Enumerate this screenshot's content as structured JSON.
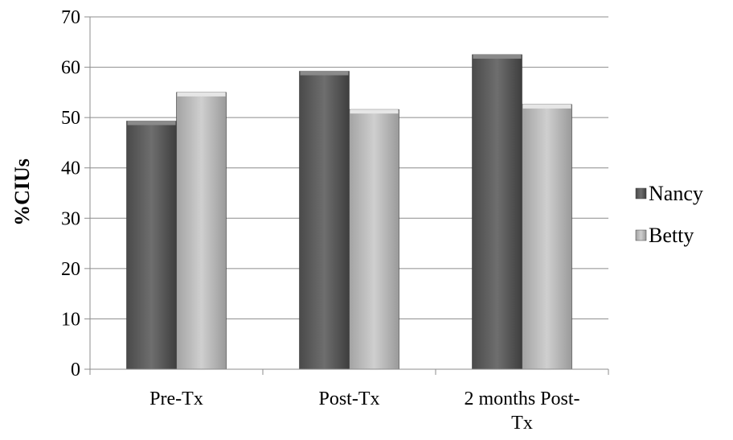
{
  "chart_data": {
    "type": "bar",
    "title": "",
    "xlabel": "",
    "ylabel": "%CIUs",
    "ylim": [
      0,
      70
    ],
    "yticks": [
      0,
      10,
      20,
      30,
      40,
      50,
      60,
      70
    ],
    "categories": [
      "Pre-Tx",
      "Post-Tx",
      "2 months Post-Tx"
    ],
    "category_lines": [
      [
        "Pre-Tx"
      ],
      [
        "Post-Tx"
      ],
      [
        "2 months Post-",
        "Tx"
      ]
    ],
    "series": [
      {
        "name": "Nancy",
        "values": [
          49.3,
          59.2,
          62.5
        ],
        "color": "#5a5a5a"
      },
      {
        "name": "Betty",
        "values": [
          55.0,
          51.6,
          52.6
        ],
        "color": "#b5b5b5"
      }
    ],
    "grid": true,
    "legend_position": "right"
  }
}
